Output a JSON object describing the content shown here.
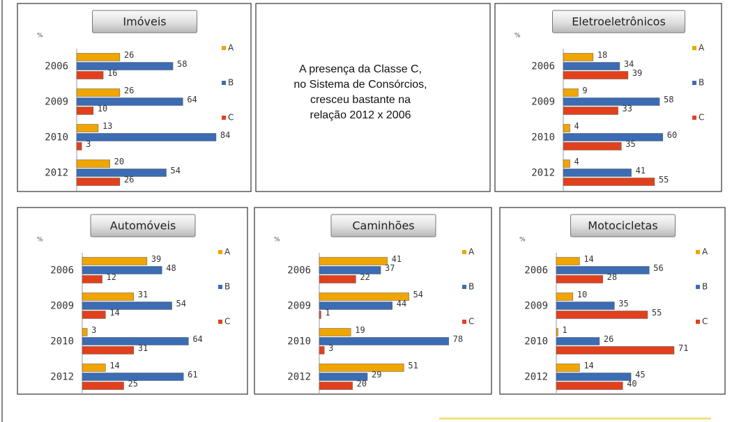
{
  "chart_data": [
    {
      "type": "bar",
      "orientation": "horizontal",
      "title": "Imóveis",
      "ylabel": "%",
      "categories": [
        "2006",
        "2009",
        "2010",
        "2012"
      ],
      "xlim": [
        0,
        100
      ],
      "series": [
        {
          "name": "A",
          "color": "#f0a500",
          "values": [
            26,
            26,
            13,
            20
          ]
        },
        {
          "name": "B",
          "color": "#3b6cb4",
          "values": [
            58,
            64,
            84,
            54
          ]
        },
        {
          "name": "C",
          "color": "#e2401c",
          "values": [
            16,
            10,
            3,
            26
          ]
        }
      ]
    },
    {
      "type": "bar",
      "orientation": "horizontal",
      "title": "Eletroeletrônicos",
      "ylabel": "%",
      "categories": [
        "2006",
        "2009",
        "2010",
        "2012"
      ],
      "xlim": [
        0,
        100
      ],
      "series": [
        {
          "name": "A",
          "color": "#f0a500",
          "values": [
            18,
            9,
            4,
            4
          ]
        },
        {
          "name": "B",
          "color": "#3b6cb4",
          "values": [
            34,
            58,
            60,
            41
          ]
        },
        {
          "name": "C",
          "color": "#e2401c",
          "values": [
            39,
            33,
            35,
            55
          ]
        }
      ]
    },
    {
      "type": "bar",
      "orientation": "horizontal",
      "title": "Automóveis",
      "ylabel": "%",
      "categories": [
        "2006",
        "2009",
        "2010",
        "2012"
      ],
      "xlim": [
        0,
        100
      ],
      "series": [
        {
          "name": "A",
          "color": "#f0a500",
          "values": [
            39,
            31,
            3,
            14
          ]
        },
        {
          "name": "B",
          "color": "#3b6cb4",
          "values": [
            48,
            54,
            64,
            61
          ]
        },
        {
          "name": "C",
          "color": "#e2401c",
          "values": [
            12,
            14,
            31,
            25
          ]
        }
      ]
    },
    {
      "type": "bar",
      "orientation": "horizontal",
      "title": "Caminhões",
      "ylabel": "%",
      "categories": [
        "2006",
        "2009",
        "2010",
        "2012"
      ],
      "xlim": [
        0,
        100
      ],
      "series": [
        {
          "name": "A",
          "color": "#f0a500",
          "values": [
            41,
            54,
            19,
            51
          ]
        },
        {
          "name": "B",
          "color": "#3b6cb4",
          "values": [
            37,
            44,
            78,
            29
          ]
        },
        {
          "name": "C",
          "color": "#e2401c",
          "values": [
            22,
            1,
            3,
            20
          ]
        }
      ]
    },
    {
      "type": "bar",
      "orientation": "horizontal",
      "title": "Motocicletas",
      "ylabel": "%",
      "categories": [
        "2006",
        "2009",
        "2010",
        "2012"
      ],
      "xlim": [
        0,
        100
      ],
      "series": [
        {
          "name": "A",
          "color": "#f0a500",
          "values": [
            14,
            10,
            1,
            14
          ]
        },
        {
          "name": "B",
          "color": "#3b6cb4",
          "values": [
            56,
            35,
            26,
            45
          ]
        },
        {
          "name": "C",
          "color": "#e2401c",
          "values": [
            28,
            55,
            71,
            40
          ]
        }
      ]
    }
  ],
  "note": [
    "A presença da Classe C,",
    "no Sistema de Consórcios,",
    "cresceu bastante na",
    "relação 2012 x 2006"
  ]
}
